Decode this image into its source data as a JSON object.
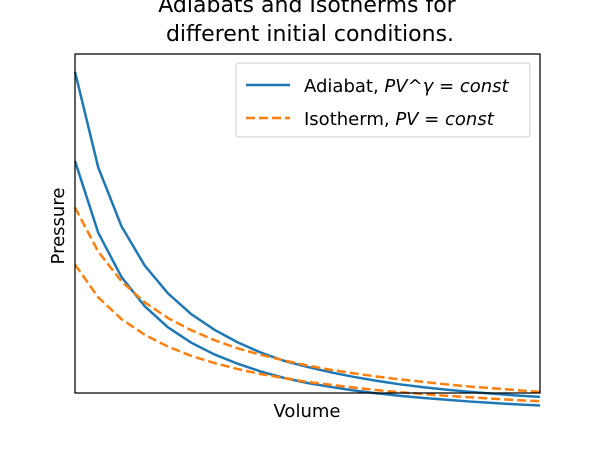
{
  "chart_data": {
    "type": "line",
    "title": [
      "Adiabats and Isotherms for",
      "different initial conditions."
    ],
    "xlabel": "Volume",
    "ylabel": "Pressure",
    "xticks": false,
    "yticks": false,
    "grid": false,
    "legend_position": "top-right",
    "xlim": [
      1,
      6
    ],
    "ylim": [
      0.1,
      1.05
    ],
    "x": [
      1.0,
      1.25,
      1.5,
      1.75,
      2.0,
      2.25,
      2.5,
      2.75,
      3.0,
      3.25,
      3.5,
      3.75,
      4.0,
      4.25,
      4.5,
      4.75,
      5.0,
      5.25,
      5.5,
      5.75,
      6.0
    ],
    "series": [
      {
        "label_prefix": "Adiabat, ",
        "label_math": "PV^γ = const",
        "style": "solid",
        "color": "#1f77b4",
        "values": [
          1.0,
          0.732,
          0.567,
          0.457,
          0.379,
          0.321,
          0.277,
          0.242,
          0.213,
          0.19,
          0.173,
          0.158,
          0.145,
          0.134,
          0.124,
          0.116,
          0.109,
          0.103,
          0.098,
          0.093,
          0.089
        ]
      },
      {
        "label_prefix": "",
        "label_math": "",
        "style": "solid",
        "color": "#1f77b4",
        "values": [
          0.75,
          0.549,
          0.425,
          0.343,
          0.284,
          0.241,
          0.208,
          0.182,
          0.16,
          0.142,
          0.128,
          0.117,
          0.107,
          0.099,
          0.092,
          0.086,
          0.081,
          0.076,
          0.072,
          0.068,
          0.065
        ]
      },
      {
        "label_prefix": "Isotherm, ",
        "label_math": "PV = const",
        "style": "dashed",
        "color": "#ff7f0e",
        "values": [
          0.62,
          0.496,
          0.413,
          0.354,
          0.31,
          0.276,
          0.248,
          0.225,
          0.207,
          0.191,
          0.177,
          0.165,
          0.155,
          0.146,
          0.138,
          0.131,
          0.124,
          0.118,
          0.113,
          0.108,
          0.103
        ]
      },
      {
        "label_prefix": "",
        "label_math": "",
        "style": "dashed",
        "color": "#ff7f0e",
        "values": [
          0.46,
          0.368,
          0.307,
          0.263,
          0.23,
          0.204,
          0.184,
          0.167,
          0.153,
          0.142,
          0.131,
          0.123,
          0.115,
          0.108,
          0.102,
          0.097,
          0.092,
          0.088,
          0.084,
          0.08,
          0.077
        ]
      }
    ]
  }
}
